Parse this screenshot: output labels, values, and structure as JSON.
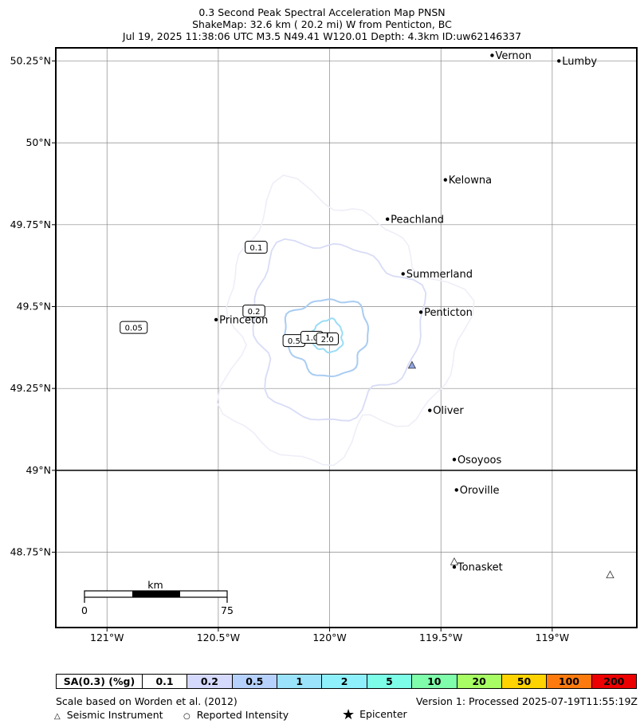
{
  "title": {
    "line1": "0.3 Second Peak Spectral Acceleration Map PNSN",
    "line2": "ShakeMap: 32.6 km (  20.2 mi) W from Penticton, BC",
    "line3": "Jul 19, 2025 11:38:06 UTC M3.5 N49.41 W120.01 Depth: 4.3km ID:uw62146337"
  },
  "map": {
    "extent": {
      "lon_min": -121.23,
      "lon_max": -118.62,
      "lat_min": 48.52,
      "lat_max": 50.29
    },
    "lat_ticks": [
      {
        "value": 50.25,
        "label": "50.25°N"
      },
      {
        "value": 50.0,
        "label": "50°N"
      },
      {
        "value": 49.75,
        "label": "49.75°N"
      },
      {
        "value": 49.5,
        "label": "49.5°N"
      },
      {
        "value": 49.25,
        "label": "49.25°N"
      },
      {
        "value": 49.0,
        "label": "49°N"
      },
      {
        "value": 48.75,
        "label": "48.75°N"
      }
    ],
    "lon_ticks": [
      {
        "value": -121.0,
        "label": "121°W"
      },
      {
        "value": -120.5,
        "label": "120.5°W"
      },
      {
        "value": -120.0,
        "label": "120°W"
      },
      {
        "value": -119.5,
        "label": "119.5°W"
      },
      {
        "value": -119.0,
        "label": "119°W"
      }
    ],
    "border_lat": 49.0,
    "cities": [
      {
        "name": "Vernon",
        "lon": -119.27,
        "lat": 50.267
      },
      {
        "name": "Lumby",
        "lon": -118.97,
        "lat": 50.25
      },
      {
        "name": "Kelowna",
        "lon": -119.48,
        "lat": 49.887
      },
      {
        "name": "Peachland",
        "lon": -119.74,
        "lat": 49.767
      },
      {
        "name": "Summerland",
        "lon": -119.67,
        "lat": 49.6
      },
      {
        "name": "Penticton",
        "lon": -119.59,
        "lat": 49.483
      },
      {
        "name": "Princeton",
        "lon": -120.51,
        "lat": 49.46
      },
      {
        "name": "Oliver",
        "lon": -119.55,
        "lat": 49.183
      },
      {
        "name": "Osoyoos",
        "lon": -119.44,
        "lat": 49.033
      },
      {
        "name": "Oroville",
        "lon": -119.43,
        "lat": 48.94
      },
      {
        "name": "Tonasket",
        "lon": -119.44,
        "lat": 48.705
      }
    ],
    "epicenter": {
      "lon": -120.01,
      "lat": 49.41
    },
    "stations": [
      {
        "lon": -119.63,
        "lat": 49.32,
        "color": "#8fa3e6"
      },
      {
        "lon": -119.44,
        "lat": 48.72,
        "color": "#ffffff"
      },
      {
        "lon": -118.74,
        "lat": 48.68,
        "color": "#ffffff"
      }
    ],
    "contour_labels": [
      {
        "text": "0.05",
        "lon": -120.88,
        "lat": 49.435
      },
      {
        "text": "0.1",
        "lon": -120.33,
        "lat": 49.68
      },
      {
        "text": "0.2",
        "lon": -120.34,
        "lat": 49.485
      },
      {
        "text": "0.5",
        "lon": -120.16,
        "lat": 49.395
      },
      {
        "text": "1.0",
        "lon": -120.08,
        "lat": 49.405
      },
      {
        "text": "2.0",
        "lon": -120.01,
        "lat": 49.4
      }
    ],
    "scalebar": {
      "unit": "km",
      "start": "0",
      "end": "75"
    }
  },
  "legend": {
    "header": "SA(0.3) (%g)",
    "cells": [
      {
        "label": "0.1",
        "color": "#ffffff"
      },
      {
        "label": "0.2",
        "color": "#d5d9fc"
      },
      {
        "label": "0.5",
        "color": "#b6d1fb"
      },
      {
        "label": "1",
        "color": "#9ae3fb"
      },
      {
        "label": "2",
        "color": "#8ef0fb"
      },
      {
        "label": "5",
        "color": "#7dfde8"
      },
      {
        "label": "10",
        "color": "#7ffdab"
      },
      {
        "label": "20",
        "color": "#a7fd63"
      },
      {
        "label": "50",
        "color": "#ffd300"
      },
      {
        "label": "100",
        "color": "#fd7b0e"
      },
      {
        "label": "200",
        "color": "#ec0000"
      }
    ]
  },
  "footer": {
    "scale_note": "Scale based on Worden et al. (2012)",
    "version": "Version 1: Processed 2025-07-19T11:55:19Z",
    "seismic_label": "Seismic Instrument",
    "reported_label": "Reported Intensity",
    "epicenter_label": "Epicenter"
  }
}
